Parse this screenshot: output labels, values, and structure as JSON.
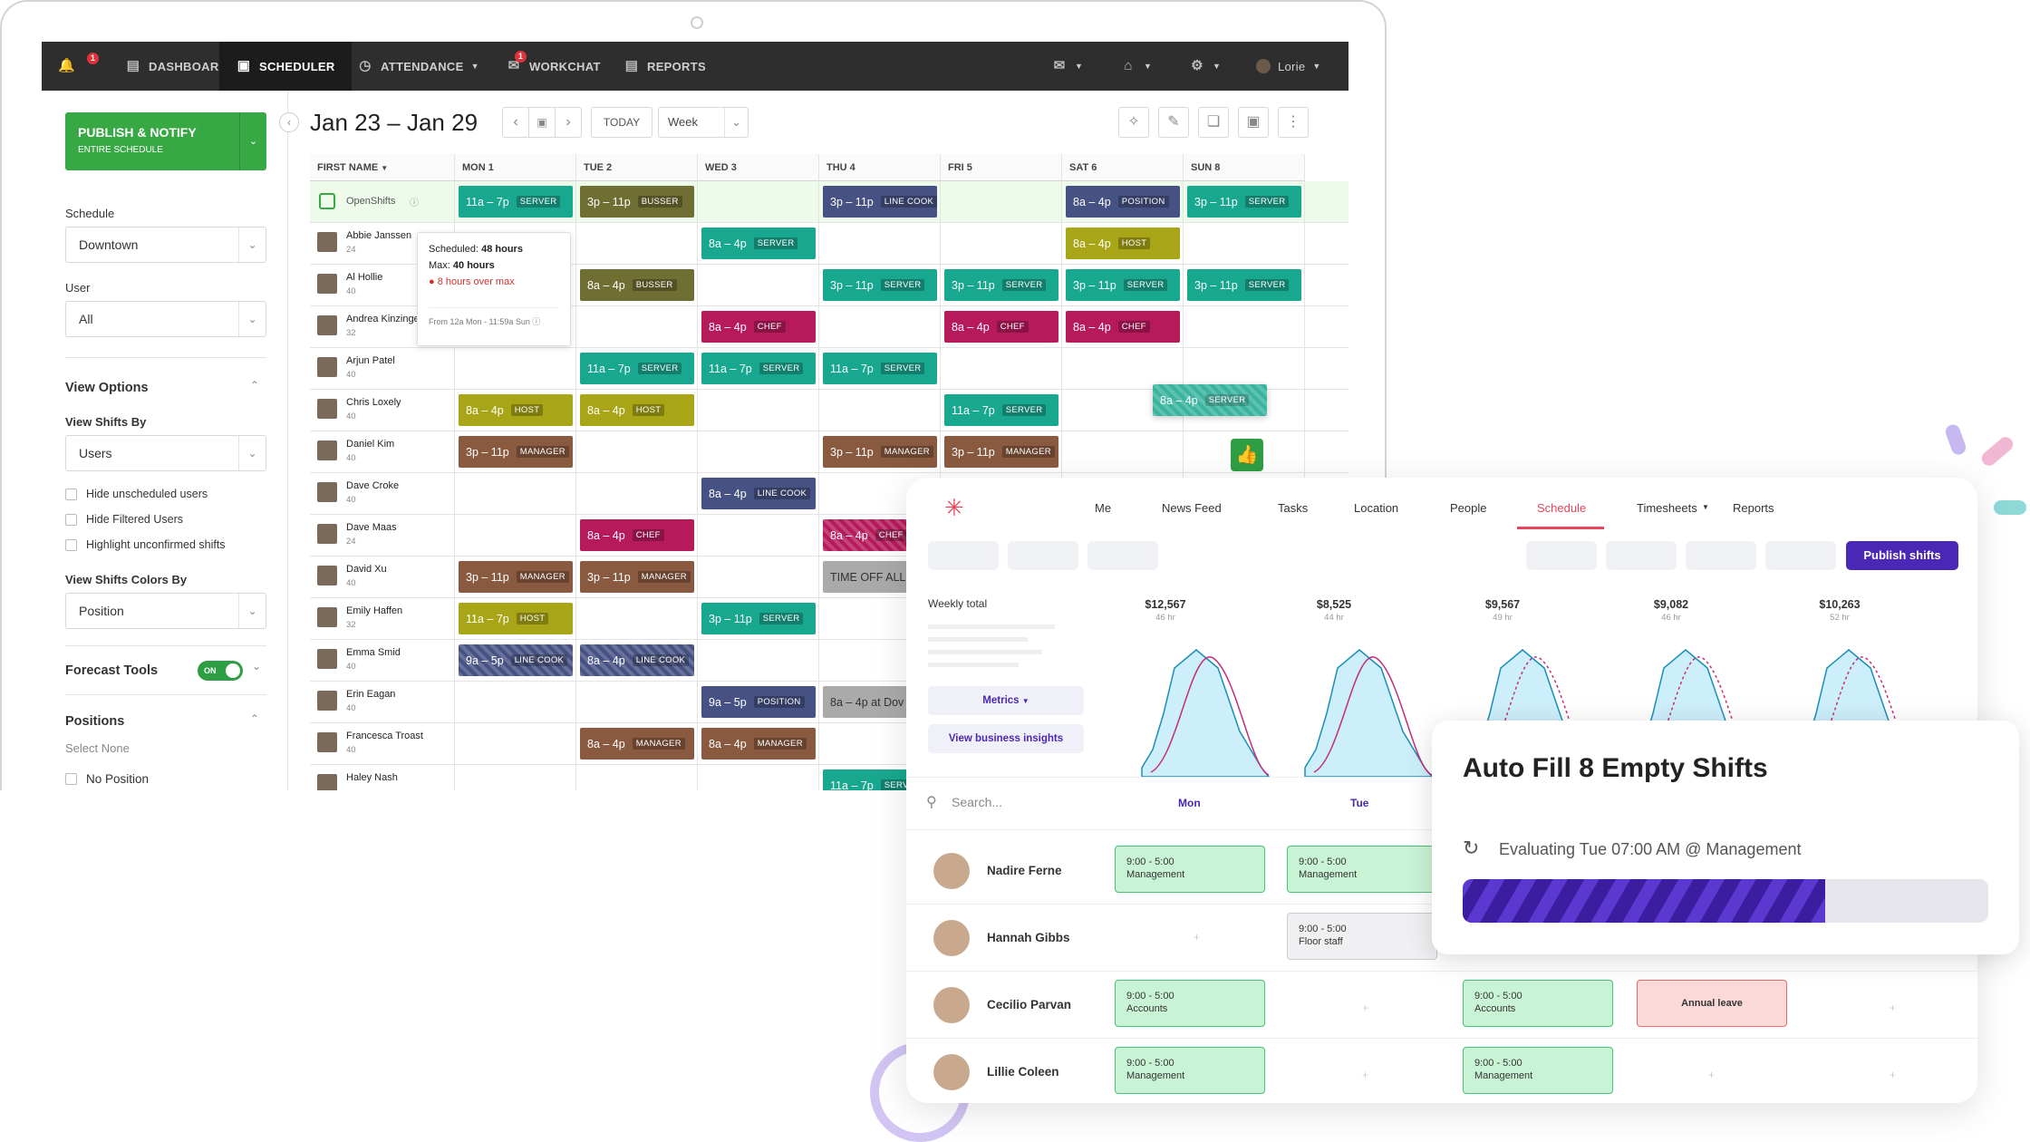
{
  "topnav": {
    "dashboard": "DASHBOARD",
    "scheduler": "SCHEDULER",
    "attendance": "ATTENDANCE",
    "workchat": "WORKCHAT",
    "reports": "REPORTS",
    "user": "Lorie",
    "bell_count": "1",
    "chat_count": "1"
  },
  "header": {
    "date_range": "Jan 23 – Jan 29",
    "today": "TODAY",
    "view": "Week"
  },
  "sidebar": {
    "publish_title": "PUBLISH & NOTIFY",
    "publish_sub": "ENTIRE SCHEDULE",
    "schedule_label": "Schedule",
    "schedule_value": "Downtown",
    "user_label": "User",
    "user_value": "All",
    "view_options": "View Options",
    "view_shifts_by": "View Shifts By",
    "view_shifts_by_value": "Users",
    "hide_unscheduled": "Hide unscheduled users",
    "hide_filtered": "Hide Filtered Users",
    "highlight_unconfirmed": "Highlight unconfirmed shifts",
    "colors_by": "View Shifts Colors By",
    "colors_by_value": "Position",
    "forecast": "Forecast Tools",
    "forecast_toggle": "ON",
    "positions": "Positions",
    "select_none": "Select None",
    "no_position": "No Position"
  },
  "grid": {
    "first_name": "FIRST NAME",
    "days": [
      "MON 1",
      "TUE 2",
      "WED 3",
      "THU 4",
      "FRI 5",
      "SAT 6",
      "SUN 8"
    ],
    "openshifts": "OpenShifts",
    "users": [
      {
        "name": "Abbie Janssen",
        "hours": "24"
      },
      {
        "name": "Al Hollie",
        "hours": "40"
      },
      {
        "name": "Andrea Kinzinger",
        "hours": "32"
      },
      {
        "name": "Arjun Patel",
        "hours": "40"
      },
      {
        "name": "Chris Loxely",
        "hours": "40"
      },
      {
        "name": "Daniel Kim",
        "hours": "40"
      },
      {
        "name": "Dave Croke",
        "hours": "40"
      },
      {
        "name": "Dave Maas",
        "hours": "24"
      },
      {
        "name": "David Xu",
        "hours": "40"
      },
      {
        "name": "Emily Haffen",
        "hours": "32"
      },
      {
        "name": "Emma Smid",
        "hours": "40"
      },
      {
        "name": "Erin Eagan",
        "hours": "40"
      },
      {
        "name": "Francesca Troast",
        "hours": "40"
      },
      {
        "name": "Haley Nash",
        "hours": ""
      }
    ]
  },
  "tooltip": {
    "scheduled_label": "Scheduled:",
    "scheduled_value": "48 hours",
    "max_label": "Max:",
    "max_value": "40 hours",
    "warning": "8 hours over max",
    "from": "From 12a Mon - 11:59a Sun"
  },
  "panel": {
    "nav": [
      "Me",
      "News Feed",
      "Tasks",
      "Location",
      "People",
      "Schedule",
      "Timesheets",
      "Reports"
    ],
    "publish": "Publish shifts",
    "weekly_total": "Weekly total",
    "totals": [
      {
        "v": "$12,567",
        "h": "46 hr"
      },
      {
        "v": "$8,525",
        "h": "44 hr"
      },
      {
        "v": "$9,567",
        "h": "49 hr"
      },
      {
        "v": "$9,082",
        "h": "46 hr"
      },
      {
        "v": "$10,263",
        "h": "52 hr"
      }
    ],
    "metrics": "Metrics",
    "insights": "View business insights",
    "search": "Search...",
    "mon": "Mon",
    "tue": "Tue",
    "employees": [
      {
        "name": "Nadire Ferne"
      },
      {
        "name": "Hannah Gibbs"
      },
      {
        "name": "Cecilio Parvan"
      },
      {
        "name": "Lillie Coleen"
      }
    ],
    "shift_time": "9:00 - 5:00",
    "management": "Management",
    "floor_staff": "Floor staff",
    "accounts": "Accounts",
    "annual_leave": "Annual leave"
  },
  "autofill": {
    "title": "Auto Fill 8 Empty Shifts",
    "status": "Evaluating Tue 07:00 AM @ Management",
    "progress": 0.69
  }
}
